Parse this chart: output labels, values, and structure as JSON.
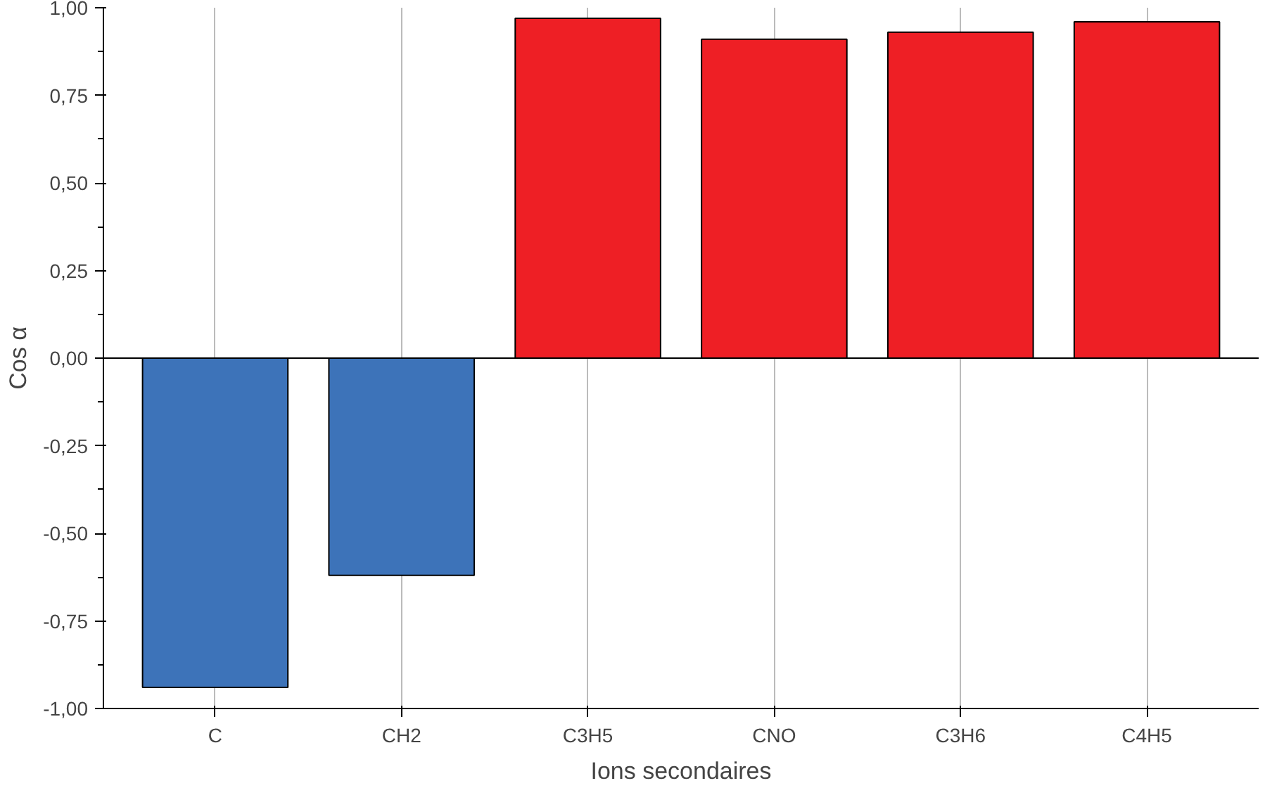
{
  "chart_data": {
    "type": "bar",
    "xlabel": "Ions secondaires",
    "ylabel": "Cos α",
    "categories": [
      "C",
      "CH2",
      "C3H5",
      "CNO",
      "C3H6",
      "C4H5"
    ],
    "values": [
      -0.94,
      -0.62,
      0.97,
      0.91,
      0.93,
      0.96
    ],
    "colors": [
      "#3d73b9",
      "#3d73b9",
      "#ee1f25",
      "#ee1f25",
      "#ee1f25",
      "#ee1f25"
    ],
    "ylim": [
      -1,
      1
    ],
    "yticks": [
      {
        "value": -1,
        "label": "-1,00"
      },
      {
        "value": -0.75,
        "label": "-0,75"
      },
      {
        "value": -0.5,
        "label": "-0,50"
      },
      {
        "value": -0.25,
        "label": "-0,25"
      },
      {
        "value": 0,
        "label": "0,00"
      },
      {
        "value": 0.25,
        "label": "0,25"
      },
      {
        "value": 0.5,
        "label": "0,50"
      },
      {
        "value": 0.75,
        "label": "0,75"
      },
      {
        "value": 1,
        "label": "1,00"
      }
    ],
    "grid": "x"
  }
}
